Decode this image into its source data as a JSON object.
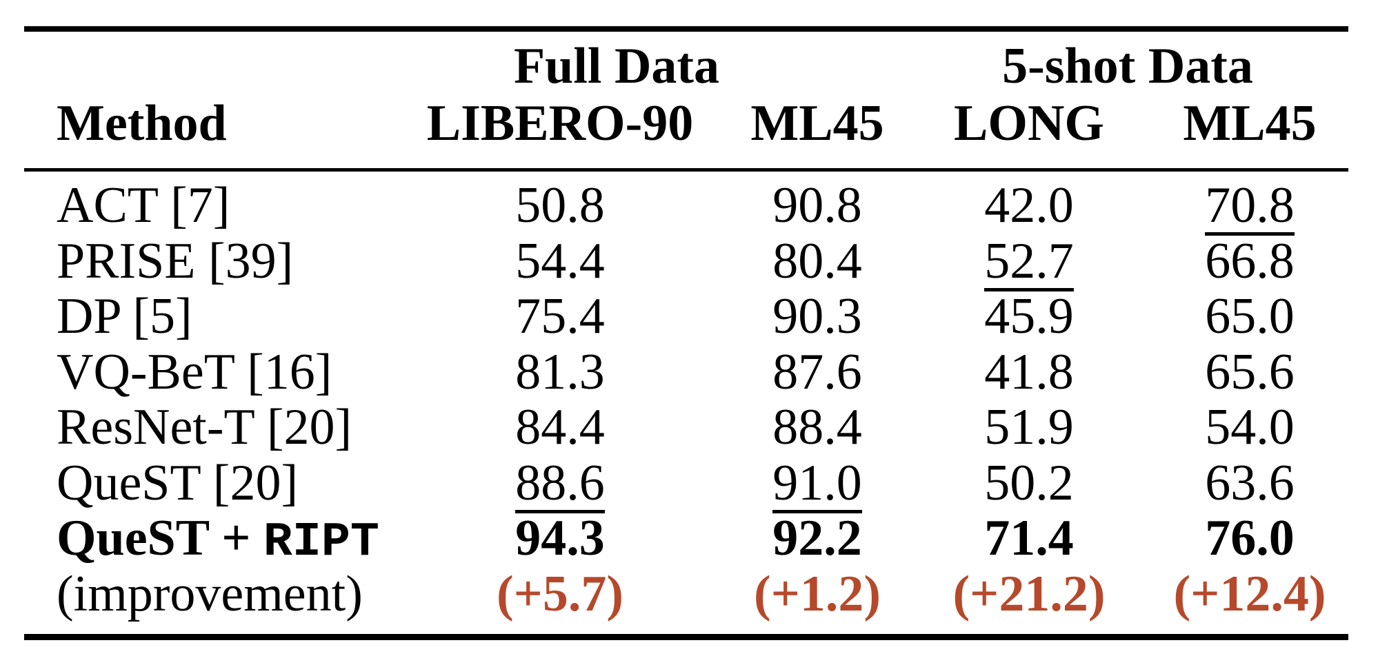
{
  "colors": {
    "accent": "#b6492b",
    "text": "#000000",
    "background": "#ffffff"
  },
  "table": {
    "header": {
      "method": "Method",
      "groups": [
        {
          "label": "Full Data"
        },
        {
          "label": "5-shot Data"
        }
      ],
      "columns": [
        "LIBERO-90",
        "ML45",
        "LONG",
        "ML45"
      ]
    },
    "rows": [
      {
        "method": "ACT [7]",
        "values": [
          "50.8",
          "90.8",
          "42.0",
          "70.8"
        ],
        "underline_cols": [
          3
        ]
      },
      {
        "method": "PRISE [39]",
        "values": [
          "54.4",
          "80.4",
          "52.7",
          "66.8"
        ],
        "underline_cols": [
          2
        ]
      },
      {
        "method": "DP [5]",
        "values": [
          "75.4",
          "90.3",
          "45.9",
          "65.0"
        ],
        "underline_cols": []
      },
      {
        "method": "VQ-BeT [16]",
        "values": [
          "81.3",
          "87.6",
          "41.8",
          "65.6"
        ],
        "underline_cols": []
      },
      {
        "method": "ResNet-T [20]",
        "values": [
          "84.4",
          "88.4",
          "51.9",
          "54.0"
        ],
        "underline_cols": []
      },
      {
        "method": "QueST [20]",
        "values": [
          "88.6",
          "91.0",
          "50.2",
          "63.6"
        ],
        "underline_cols": [
          0,
          1
        ]
      },
      {
        "method": "QueST + ",
        "method_mono": "RIPT",
        "values": [
          "94.3",
          "92.2",
          "71.4",
          "76.0"
        ],
        "bold": true
      },
      {
        "method": "(improvement)",
        "values": [
          "(+5.7)",
          "(+1.2)",
          "(+21.2)",
          "(+12.4)"
        ],
        "value_color": "accent"
      }
    ]
  }
}
